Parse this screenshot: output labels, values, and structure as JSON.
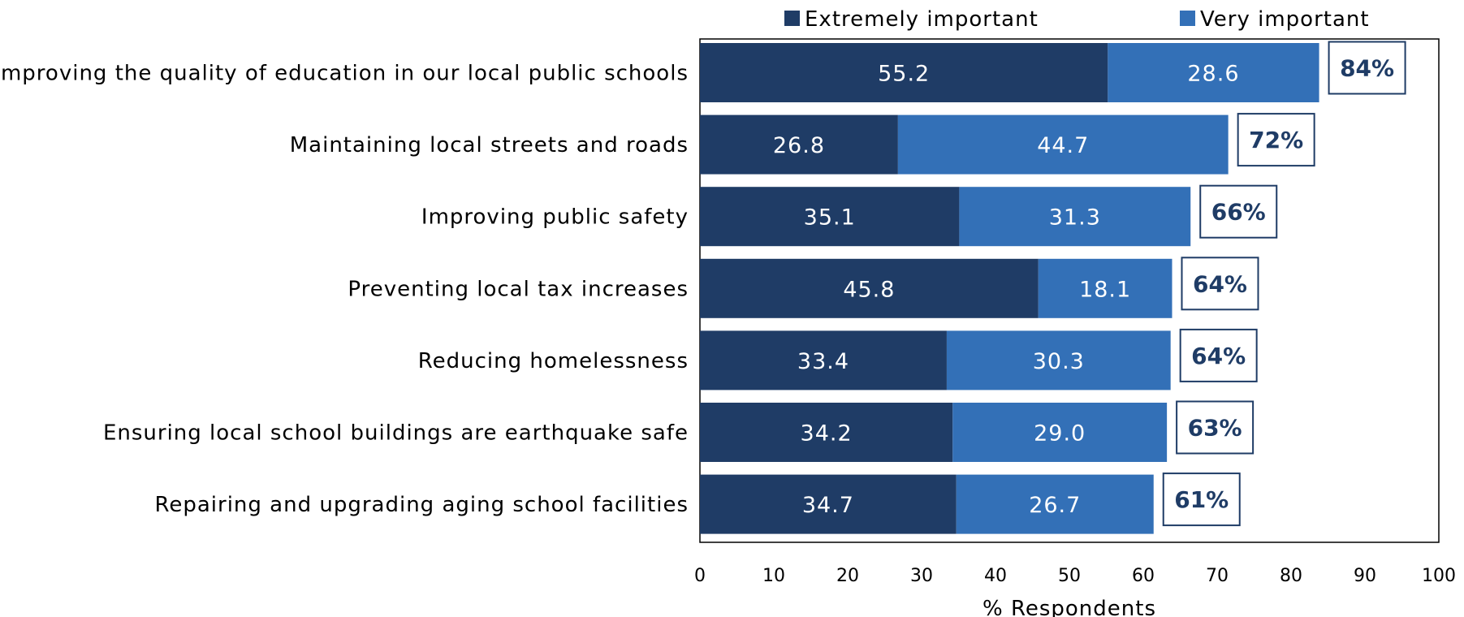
{
  "chart_data": {
    "type": "bar",
    "orientation": "horizontal",
    "stacked": true,
    "categories": [
      "Improving the quality of education in our local public schools",
      "Maintaining local streets and roads",
      "Improving public safety",
      "Preventing local tax increases",
      "Reducing homelessness",
      "Ensuring local school buildings are earthquake safe",
      "Repairing and upgrading aging school facilities"
    ],
    "series": [
      {
        "name": "Extremely important",
        "color": "#1f3c66",
        "values": [
          55.2,
          26.8,
          35.1,
          45.8,
          33.4,
          34.2,
          34.7
        ],
        "labels": [
          "55.2",
          "26.8",
          "35.1",
          "45.8",
          "33.4",
          "34.2",
          "34.7"
        ]
      },
      {
        "name": "Very important",
        "color": "#3370b7",
        "values": [
          28.6,
          44.7,
          31.3,
          18.1,
          30.3,
          29.0,
          26.7
        ],
        "labels": [
          "28.6",
          "44.7",
          "31.3",
          "18.1",
          "30.3",
          "29.0",
          "26.7"
        ]
      }
    ],
    "totals": [
      "84%",
      "72%",
      "66%",
      "64%",
      "64%",
      "63%",
      "61%"
    ],
    "xlabel": "% Respondents",
    "xlim": [
      0,
      100
    ],
    "xticks": [
      "0",
      "10",
      "20",
      "30",
      "40",
      "50",
      "60",
      "70",
      "80",
      "90",
      "100"
    ],
    "grid": false,
    "legend_position": "top"
  }
}
